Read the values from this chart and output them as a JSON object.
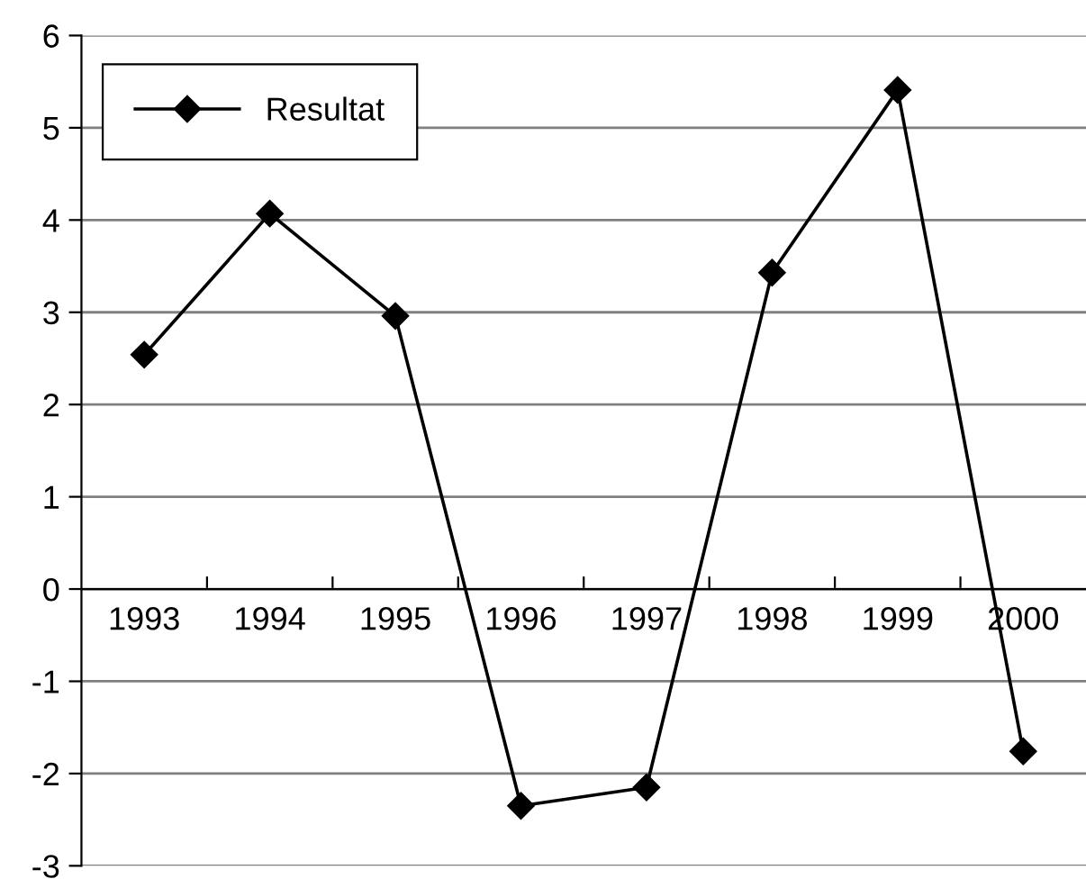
{
  "chart_data": {
    "type": "line",
    "categories": [
      "1993",
      "1994",
      "1995",
      "1996",
      "1997",
      "1998",
      "1999",
      "2000"
    ],
    "series": [
      {
        "name": "Resultat",
        "color": "#000000",
        "values": [
          2.54,
          4.07,
          2.96,
          -2.35,
          -2.15,
          3.43,
          5.41,
          -1.76
        ]
      }
    ],
    "ylim": [
      -3,
      6
    ],
    "yticks": [
      -3,
      -2,
      -1,
      0,
      1,
      2,
      3,
      4,
      5,
      6
    ],
    "grid": "y",
    "legend": "top left",
    "marker": "diamond",
    "line_style": "solid"
  }
}
